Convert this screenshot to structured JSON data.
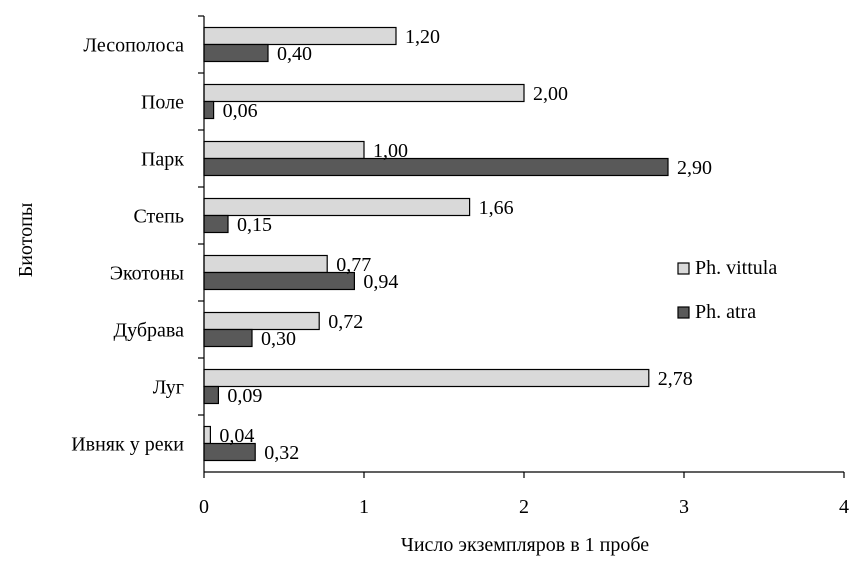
{
  "chart_data": {
    "type": "bar",
    "orientation": "horizontal",
    "categories": [
      "Лесополоса",
      "Поле",
      "Парк",
      "Степь",
      "Экотоны",
      "Дубрава",
      "Луг",
      "Ивняк у реки"
    ],
    "series": [
      {
        "name": "Ph. vittula",
        "color": "#d9d9d9",
        "values": [
          1.2,
          2.0,
          1.0,
          1.66,
          0.77,
          0.72,
          2.78,
          0.04
        ],
        "labels": [
          "1,20",
          "2,00",
          "1,00",
          "1,66",
          "0,77",
          "0,72",
          "2,78",
          "0,04"
        ]
      },
      {
        "name": "Ph. atra",
        "color": "#595959",
        "values": [
          0.4,
          0.06,
          2.9,
          0.15,
          0.94,
          0.3,
          0.09,
          0.32
        ],
        "labels": [
          "0,40",
          "0,06",
          "2,90",
          "0,15",
          "0,94",
          "0,30",
          "0,09",
          "0,32"
        ]
      }
    ],
    "title": "",
    "xlabel": "Число экземпляров в 1 пробе",
    "ylabel": "Биотопы",
    "xlim": [
      0,
      4
    ],
    "x_ticks": [
      "0",
      "1",
      "2",
      "3",
      "4"
    ],
    "grid": false,
    "legend_position": "right"
  }
}
